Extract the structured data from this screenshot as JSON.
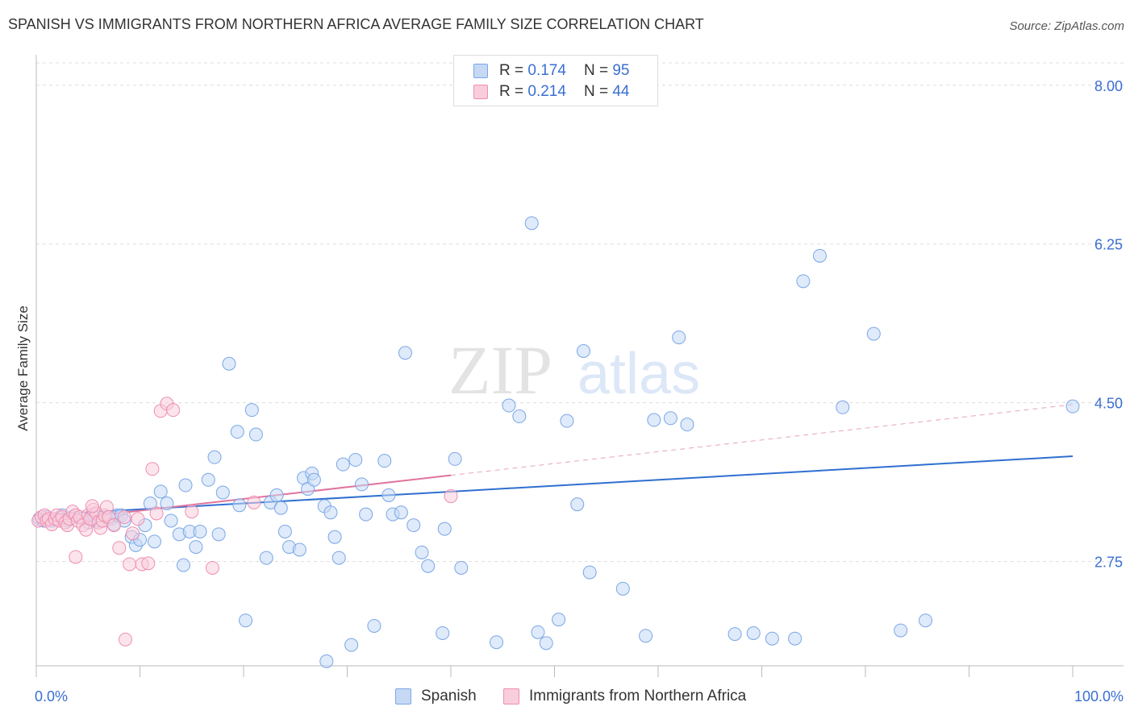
{
  "title": "SPANISH VS IMMIGRANTS FROM NORTHERN AFRICA AVERAGE FAMILY SIZE CORRELATION CHART",
  "source": "Source: ZipAtlas.com",
  "watermark": {
    "zip": "ZIP",
    "atlas": "atlas"
  },
  "legend_top": [
    {
      "r_label": "R =",
      "r_value": "0.174",
      "n_label": "N =",
      "n_value": "95"
    },
    {
      "r_label": "R =",
      "r_value": "0.214",
      "n_label": "N =",
      "n_value": "44"
    }
  ],
  "chart_data": {
    "type": "scatter",
    "title": "",
    "xlabel": "",
    "ylabel": "Average Family Size",
    "xlim": [
      0,
      100
    ],
    "ylim": [
      1.6,
      8.3
    ],
    "x_tick_labels": [
      "0.0%",
      "100.0%"
    ],
    "y_ticks": [
      2.75,
      4.5,
      6.25,
      8.0
    ],
    "y_tick_labels": [
      "2.75",
      "4.50",
      "6.25",
      "8.00"
    ],
    "grid": true,
    "legend": "bottom",
    "series": [
      {
        "name": "Spanish",
        "color": "#7aa7e6",
        "fill": "#c5d9f5",
        "trend": {
          "x": [
            0,
            100
          ],
          "y": [
            3.26,
            3.91
          ]
        },
        "points": [
          [
            0.3,
            3.22
          ],
          [
            0.7,
            3.2
          ],
          [
            1.0,
            3.24
          ],
          [
            1.5,
            3.2
          ],
          [
            2.0,
            3.22
          ],
          [
            2.5,
            3.26
          ],
          [
            3.0,
            3.2
          ],
          [
            3.5,
            3.24
          ],
          [
            4.5,
            3.22
          ],
          [
            5.0,
            3.18
          ],
          [
            5.5,
            3.27
          ],
          [
            6.0,
            3.2
          ],
          [
            6.8,
            3.24
          ],
          [
            7.2,
            3.22
          ],
          [
            7.5,
            3.16
          ],
          [
            7.8,
            3.26
          ],
          [
            8.2,
            3.26
          ],
          [
            8.5,
            3.2
          ],
          [
            9.2,
            3.02
          ],
          [
            9.6,
            2.93
          ],
          [
            10.0,
            2.99
          ],
          [
            10.5,
            3.15
          ],
          [
            11.0,
            3.39
          ],
          [
            11.4,
            2.97
          ],
          [
            12.0,
            3.52
          ],
          [
            12.6,
            3.39
          ],
          [
            13.0,
            3.2
          ],
          [
            13.8,
            3.05
          ],
          [
            14.2,
            2.71
          ],
          [
            14.4,
            3.59
          ],
          [
            14.8,
            3.08
          ],
          [
            15.4,
            2.91
          ],
          [
            15.8,
            3.08
          ],
          [
            16.6,
            3.65
          ],
          [
            17.2,
            3.9
          ],
          [
            17.6,
            3.05
          ],
          [
            18.0,
            3.51
          ],
          [
            18.6,
            4.93
          ],
          [
            19.4,
            4.18
          ],
          [
            19.6,
            3.37
          ],
          [
            20.2,
            2.1
          ],
          [
            20.8,
            4.42
          ],
          [
            21.2,
            4.15
          ],
          [
            22.2,
            2.79
          ],
          [
            22.6,
            3.4
          ],
          [
            23.2,
            3.48
          ],
          [
            23.6,
            3.34
          ],
          [
            24.0,
            3.08
          ],
          [
            24.4,
            2.91
          ],
          [
            25.4,
            2.88
          ],
          [
            25.8,
            3.67
          ],
          [
            26.2,
            3.55
          ],
          [
            26.6,
            3.72
          ],
          [
            26.8,
            3.65
          ],
          [
            27.8,
            3.36
          ],
          [
            28.4,
            3.29
          ],
          [
            28.8,
            3.02
          ],
          [
            29.2,
            2.79
          ],
          [
            29.6,
            3.82
          ],
          [
            28.0,
            1.65
          ],
          [
            30.4,
            1.83
          ],
          [
            30.8,
            3.87
          ],
          [
            31.4,
            3.6
          ],
          [
            31.8,
            3.27
          ],
          [
            32.6,
            2.04
          ],
          [
            33.6,
            3.86
          ],
          [
            34.0,
            3.48
          ],
          [
            34.4,
            3.27
          ],
          [
            35.2,
            3.29
          ],
          [
            35.6,
            5.05
          ],
          [
            36.4,
            3.15
          ],
          [
            37.2,
            2.85
          ],
          [
            37.8,
            2.7
          ],
          [
            39.2,
            1.96
          ],
          [
            39.4,
            3.11
          ],
          [
            40.4,
            3.88
          ],
          [
            41.0,
            2.68
          ],
          [
            44.4,
            1.86
          ],
          [
            45.6,
            4.47
          ],
          [
            46.6,
            4.35
          ],
          [
            47.8,
            6.48
          ],
          [
            48.4,
            1.97
          ],
          [
            49.2,
            1.85
          ],
          [
            50.4,
            2.11
          ],
          [
            51.2,
            4.3
          ],
          [
            52.2,
            3.38
          ],
          [
            52.8,
            5.07
          ],
          [
            53.4,
            2.63
          ],
          [
            56.6,
            2.45
          ],
          [
            58.8,
            1.93
          ],
          [
            59.6,
            4.31
          ],
          [
            61.2,
            4.33
          ],
          [
            62.8,
            4.26
          ],
          [
            62.0,
            5.22
          ],
          [
            67.4,
            1.95
          ],
          [
            69.2,
            1.96
          ],
          [
            71.0,
            1.9
          ],
          [
            73.2,
            1.9
          ],
          [
            74.0,
            5.84
          ],
          [
            75.6,
            6.12
          ],
          [
            77.8,
            4.45
          ],
          [
            80.8,
            5.26
          ],
          [
            83.4,
            1.99
          ],
          [
            85.8,
            2.1
          ],
          [
            100.0,
            4.46
          ]
        ]
      },
      {
        "name": "Immigrants from Northern Africa",
        "color": "#ee8fb0",
        "fill": "#f9cddc",
        "trend": {
          "x": [
            0,
            40
          ],
          "y": [
            3.18,
            3.7
          ],
          "dash_x": [
            40,
            100
          ],
          "dash_y": [
            3.7,
            4.48
          ]
        },
        "points": [
          [
            0.2,
            3.2
          ],
          [
            0.5,
            3.24
          ],
          [
            0.8,
            3.26
          ],
          [
            1.0,
            3.2
          ],
          [
            1.2,
            3.22
          ],
          [
            1.5,
            3.16
          ],
          [
            1.8,
            3.22
          ],
          [
            2.0,
            3.26
          ],
          [
            2.2,
            3.2
          ],
          [
            2.5,
            3.24
          ],
          [
            2.8,
            3.18
          ],
          [
            3.0,
            3.15
          ],
          [
            3.2,
            3.22
          ],
          [
            3.5,
            3.3
          ],
          [
            3.8,
            3.26
          ],
          [
            4.0,
            3.2
          ],
          [
            4.2,
            3.24
          ],
          [
            4.5,
            3.15
          ],
          [
            4.8,
            3.1
          ],
          [
            5.0,
            3.26
          ],
          [
            5.2,
            3.22
          ],
          [
            5.5,
            3.32
          ],
          [
            5.8,
            3.28
          ],
          [
            6.0,
            3.18
          ],
          [
            6.2,
            3.12
          ],
          [
            6.4,
            3.2
          ],
          [
            6.6,
            3.26
          ],
          [
            6.8,
            3.35
          ],
          [
            7.0,
            3.24
          ],
          [
            7.5,
            3.15
          ],
          [
            8.0,
            2.9
          ],
          [
            8.5,
            3.24
          ],
          [
            9.0,
            2.72
          ],
          [
            9.3,
            3.06
          ],
          [
            9.8,
            3.22
          ],
          [
            10.2,
            2.72
          ],
          [
            10.8,
            2.73
          ],
          [
            11.2,
            3.77
          ],
          [
            11.6,
            3.28
          ],
          [
            12.0,
            4.41
          ],
          [
            12.6,
            4.49
          ],
          [
            13.2,
            4.42
          ],
          [
            21.0,
            3.4
          ],
          [
            40.0,
            3.47
          ],
          [
            15.0,
            3.3
          ],
          [
            17.0,
            2.68
          ],
          [
            3.8,
            2.8
          ],
          [
            8.6,
            1.89
          ],
          [
            5.4,
            3.36
          ]
        ]
      }
    ]
  }
}
